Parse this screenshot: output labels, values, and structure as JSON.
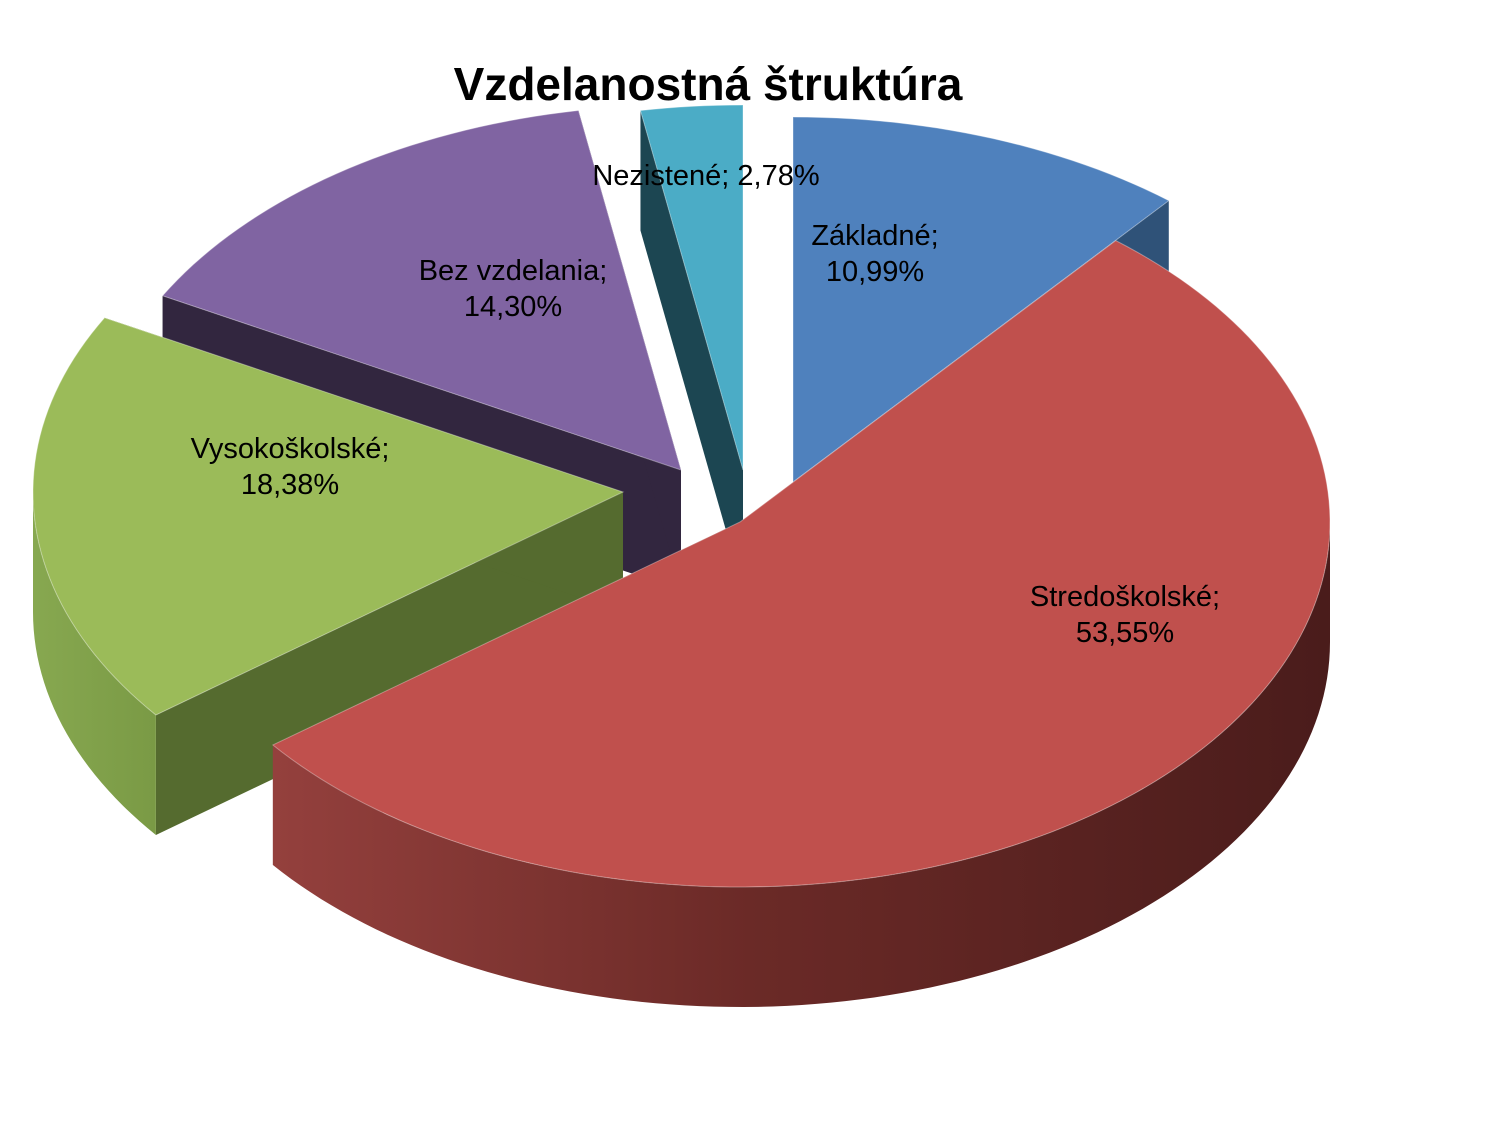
{
  "chart_data": {
    "type": "pie",
    "title": "Vzdelanostná štruktúra",
    "slices": [
      {
        "label": "Základné",
        "value": 10.99,
        "text_line1": "Základné;",
        "text_line2": "10,99%",
        "color": "#4f81bd"
      },
      {
        "label": "Stredoškolské",
        "value": 53.55,
        "text_line1": "Stredoškolské;",
        "text_line2": "53,55%",
        "color": "#c0504d"
      },
      {
        "label": "Vysokoškolské",
        "value": 18.38,
        "text_line1": "Vysokoškolské;",
        "text_line2": "18,38%",
        "color": "#9bbb59"
      },
      {
        "label": "Bez vzdelania",
        "value": 14.3,
        "text_line1": "Bez vzdelania;",
        "text_line2": "14,30%",
        "color": "#8064a2"
      },
      {
        "label": "Nezistené",
        "value": 2.78,
        "text_line1": "Nezistené; 2,78%",
        "text_line2": "",
        "color": "#4bacc6"
      }
    ],
    "legend": "none",
    "style": "3d-exploded"
  }
}
